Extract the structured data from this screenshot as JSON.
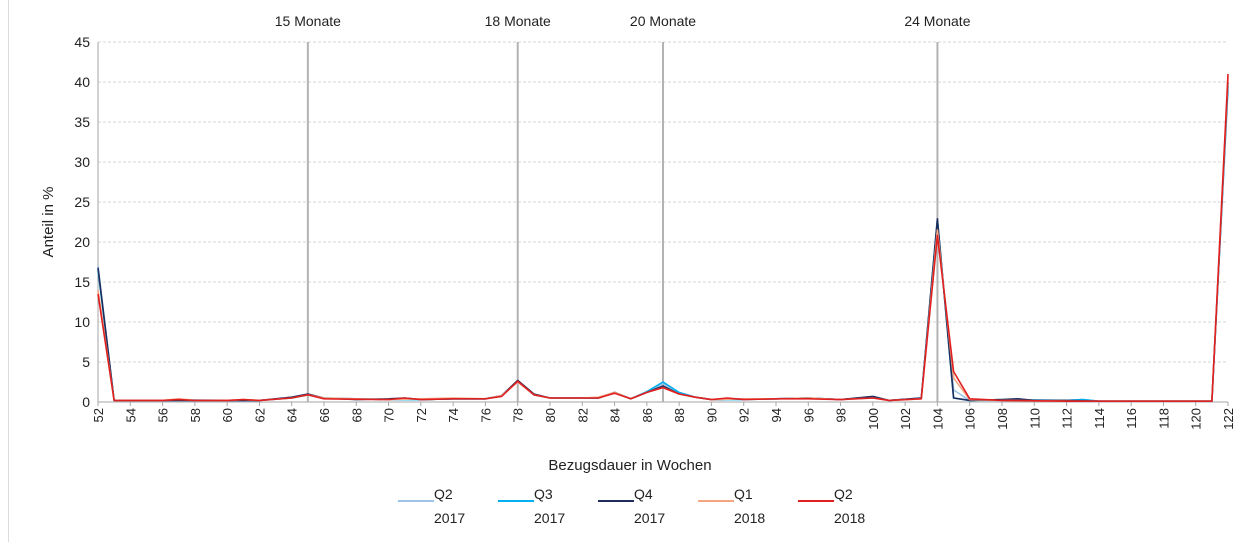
{
  "chart_data": {
    "type": "line",
    "title": "",
    "xlabel": "Bezugsdauer  in Wochen",
    "ylabel": "Anteil in %",
    "xlim": [
      52,
      122
    ],
    "ylim": [
      0,
      45
    ],
    "yticks": [
      0,
      5,
      10,
      15,
      20,
      25,
      30,
      35,
      40,
      45
    ],
    "xticks": [
      52,
      54,
      56,
      58,
      60,
      62,
      64,
      66,
      68,
      70,
      72,
      74,
      76,
      78,
      80,
      82,
      84,
      86,
      88,
      90,
      92,
      94,
      96,
      98,
      100,
      102,
      104,
      106,
      108,
      110,
      112,
      114,
      116,
      118,
      120,
      122
    ],
    "grid": "horizontal",
    "legend_position": "bottom",
    "reference_lines": [
      {
        "x": 65,
        "label": "15 Monate"
      },
      {
        "x": 78,
        "label": "18 Monate"
      },
      {
        "x": 87,
        "label": "20 Monate"
      },
      {
        "x": 104,
        "label": "24 Monate"
      }
    ],
    "series": [
      {
        "name": [
          "Q2",
          "2017"
        ],
        "color": "#9DC3E6",
        "points": [
          [
            52,
            17
          ],
          [
            53,
            0.2
          ],
          [
            56,
            0.2
          ],
          [
            57,
            0.3
          ],
          [
            60,
            0.2
          ],
          [
            62,
            0.2
          ],
          [
            64,
            0.5
          ],
          [
            65,
            0.9
          ],
          [
            66,
            0.5
          ],
          [
            70,
            0.3
          ],
          [
            72,
            0.3
          ],
          [
            74,
            0.4
          ],
          [
            76,
            0.4
          ],
          [
            77,
            0.8
          ],
          [
            78,
            2.6
          ],
          [
            79,
            0.9
          ],
          [
            80,
            0.5
          ],
          [
            82,
            0.5
          ],
          [
            83,
            0.5
          ],
          [
            84,
            1.2
          ],
          [
            85,
            0.4
          ],
          [
            86,
            1.2
          ],
          [
            87,
            2.3
          ],
          [
            88,
            1.1
          ],
          [
            89,
            0.6
          ],
          [
            90,
            0.3
          ],
          [
            92,
            0.4
          ],
          [
            94,
            0.4
          ],
          [
            96,
            0.5
          ],
          [
            98,
            0.3
          ],
          [
            100,
            0.6
          ],
          [
            101,
            0.2
          ],
          [
            103,
            0.5
          ],
          [
            104,
            22.5
          ],
          [
            105,
            1.5
          ],
          [
            106,
            0.2
          ],
          [
            108,
            0.2
          ],
          [
            112,
            0.2
          ],
          [
            113,
            0.3
          ],
          [
            114,
            0.1
          ],
          [
            121,
            0.1
          ],
          [
            122,
            39
          ]
        ]
      },
      {
        "name": [
          "Q3",
          "2017"
        ],
        "color": "#00B0F0",
        "points": [
          [
            52,
            16.5
          ],
          [
            53,
            0.2
          ],
          [
            56,
            0.2
          ],
          [
            58,
            0.2
          ],
          [
            60,
            0.2
          ],
          [
            62,
            0.2
          ],
          [
            64,
            0.5
          ],
          [
            65,
            0.9
          ],
          [
            66,
            0.5
          ],
          [
            70,
            0.3
          ],
          [
            72,
            0.3
          ],
          [
            74,
            0.4
          ],
          [
            76,
            0.4
          ],
          [
            77,
            0.8
          ],
          [
            78,
            2.6
          ],
          [
            79,
            0.9
          ],
          [
            80,
            0.5
          ],
          [
            82,
            0.5
          ],
          [
            83,
            0.5
          ],
          [
            84,
            1.2
          ],
          [
            85,
            0.4
          ],
          [
            86,
            1.3
          ],
          [
            87,
            2.5
          ],
          [
            88,
            1.2
          ],
          [
            89,
            0.6
          ],
          [
            90,
            0.3
          ],
          [
            92,
            0.3
          ],
          [
            94,
            0.4
          ],
          [
            96,
            0.5
          ],
          [
            98,
            0.3
          ],
          [
            100,
            0.6
          ],
          [
            101,
            0.2
          ],
          [
            103,
            0.5
          ],
          [
            104,
            22.8
          ],
          [
            105,
            0.5
          ],
          [
            106,
            0.2
          ],
          [
            108,
            0.3
          ],
          [
            112,
            0.2
          ],
          [
            113,
            0.3
          ],
          [
            114,
            0.1
          ],
          [
            121,
            0.1
          ],
          [
            122,
            39.5
          ]
        ]
      },
      {
        "name": [
          "Q4",
          "2017"
        ],
        "color": "#1F2D5C",
        "points": [
          [
            52,
            16.8
          ],
          [
            53,
            0.2
          ],
          [
            56,
            0.2
          ],
          [
            58,
            0.2
          ],
          [
            60,
            0.2
          ],
          [
            62,
            0.2
          ],
          [
            64,
            0.6
          ],
          [
            65,
            1.0
          ],
          [
            66,
            0.5
          ],
          [
            68,
            0.3
          ],
          [
            70,
            0.4
          ],
          [
            71,
            0.5
          ],
          [
            72,
            0.3
          ],
          [
            74,
            0.4
          ],
          [
            76,
            0.4
          ],
          [
            77,
            0.8
          ],
          [
            78,
            2.7
          ],
          [
            79,
            1.0
          ],
          [
            80,
            0.5
          ],
          [
            82,
            0.5
          ],
          [
            83,
            0.5
          ],
          [
            84,
            1.2
          ],
          [
            85,
            0.4
          ],
          [
            86,
            1.2
          ],
          [
            87,
            2.0
          ],
          [
            88,
            1.0
          ],
          [
            89,
            0.6
          ],
          [
            90,
            0.3
          ],
          [
            92,
            0.4
          ],
          [
            94,
            0.4
          ],
          [
            96,
            0.5
          ],
          [
            98,
            0.3
          ],
          [
            100,
            0.7
          ],
          [
            101,
            0.2
          ],
          [
            103,
            0.5
          ],
          [
            104,
            22.9
          ],
          [
            105,
            0.5
          ],
          [
            106,
            0.2
          ],
          [
            108,
            0.3
          ],
          [
            109,
            0.4
          ],
          [
            110,
            0.2
          ],
          [
            112,
            0.2
          ],
          [
            114,
            0.1
          ],
          [
            121,
            0.1
          ],
          [
            122,
            40
          ]
        ]
      },
      {
        "name": [
          "Q1",
          "2018"
        ],
        "color": "#F4A582",
        "points": [
          [
            52,
            14
          ],
          [
            53,
            0.2
          ],
          [
            56,
            0.2
          ],
          [
            57,
            0.4
          ],
          [
            58,
            0.2
          ],
          [
            60,
            0.2
          ],
          [
            61,
            0.3
          ],
          [
            62,
            0.2
          ],
          [
            64,
            0.5
          ],
          [
            65,
            0.9
          ],
          [
            66,
            0.5
          ],
          [
            70,
            0.3
          ],
          [
            72,
            0.4
          ],
          [
            74,
            0.5
          ],
          [
            76,
            0.4
          ],
          [
            77,
            0.8
          ],
          [
            78,
            2.5
          ],
          [
            79,
            0.9
          ],
          [
            80,
            0.5
          ],
          [
            82,
            0.5
          ],
          [
            83,
            0.6
          ],
          [
            84,
            1.2
          ],
          [
            85,
            0.4
          ],
          [
            86,
            1.2
          ],
          [
            87,
            1.8
          ],
          [
            88,
            1.0
          ],
          [
            89,
            0.6
          ],
          [
            90,
            0.3
          ],
          [
            92,
            0.4
          ],
          [
            94,
            0.4
          ],
          [
            96,
            0.5
          ],
          [
            98,
            0.3
          ],
          [
            100,
            0.5
          ],
          [
            101,
            0.2
          ],
          [
            103,
            0.4
          ],
          [
            104,
            21.5
          ],
          [
            105,
            3.0
          ],
          [
            106,
            0.3
          ],
          [
            108,
            0.2
          ],
          [
            112,
            0.1
          ],
          [
            121,
            0.1
          ],
          [
            122,
            40.5
          ]
        ]
      },
      {
        "name": [
          "Q2",
          "2018"
        ],
        "color": "#E02020",
        "points": [
          [
            52,
            13.5
          ],
          [
            53,
            0.2
          ],
          [
            56,
            0.2
          ],
          [
            57,
            0.3
          ],
          [
            58,
            0.2
          ],
          [
            60,
            0.2
          ],
          [
            61,
            0.3
          ],
          [
            62,
            0.2
          ],
          [
            64,
            0.5
          ],
          [
            65,
            0.9
          ],
          [
            66,
            0.4
          ],
          [
            70,
            0.3
          ],
          [
            71,
            0.5
          ],
          [
            72,
            0.3
          ],
          [
            74,
            0.4
          ],
          [
            76,
            0.4
          ],
          [
            77,
            0.7
          ],
          [
            78,
            2.6
          ],
          [
            79,
            0.9
          ],
          [
            80,
            0.5
          ],
          [
            82,
            0.5
          ],
          [
            83,
            0.5
          ],
          [
            84,
            1.1
          ],
          [
            85,
            0.4
          ],
          [
            86,
            1.2
          ],
          [
            87,
            1.8
          ],
          [
            88,
            1.0
          ],
          [
            89,
            0.6
          ],
          [
            90,
            0.3
          ],
          [
            91,
            0.5
          ],
          [
            92,
            0.3
          ],
          [
            94,
            0.4
          ],
          [
            96,
            0.4
          ],
          [
            98,
            0.3
          ],
          [
            100,
            0.5
          ],
          [
            101,
            0.2
          ],
          [
            103,
            0.4
          ],
          [
            104,
            20.8
          ],
          [
            105,
            3.8
          ],
          [
            106,
            0.4
          ],
          [
            108,
            0.2
          ],
          [
            112,
            0.1
          ],
          [
            121,
            0.1
          ],
          [
            122,
            41
          ]
        ]
      }
    ]
  }
}
